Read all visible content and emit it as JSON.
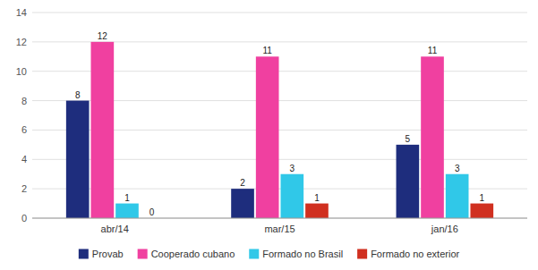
{
  "chart_data": {
    "type": "bar",
    "categories": [
      "abr/14",
      "mar/15",
      "jan/16"
    ],
    "series": [
      {
        "name": "Provab",
        "color": "#1e2d7d",
        "values": [
          8,
          2,
          5
        ]
      },
      {
        "name": "Cooperado cubano",
        "color": "#f040a0",
        "values": [
          12,
          11,
          11
        ]
      },
      {
        "name": "Formado no Brasil",
        "color": "#30c8e8",
        "values": [
          1,
          3,
          3
        ]
      },
      {
        "name": "Formado no exterior",
        "color": "#d03020",
        "values": [
          0,
          1,
          1
        ]
      }
    ],
    "ylim": [
      0,
      14
    ],
    "yticks": [
      0,
      2,
      4,
      6,
      8,
      10,
      12,
      14
    ],
    "grid": true,
    "legend": "bottom",
    "data_labels": true
  }
}
